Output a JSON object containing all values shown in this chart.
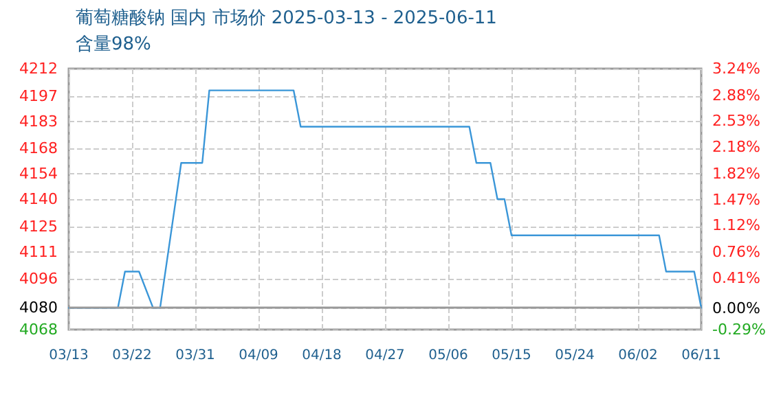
{
  "chart_data": {
    "type": "line",
    "title": "葡萄糖酸钠 国内 市场价 2025-03-13 - 2025-06-11",
    "subtitle": "含量98%",
    "x": [
      "2025-03-13",
      "2025-03-20",
      "2025-03-21",
      "2025-03-23",
      "2025-03-25",
      "2025-03-26",
      "2025-03-29",
      "2025-04-01",
      "2025-04-02",
      "2025-04-14",
      "2025-04-15",
      "2025-05-09",
      "2025-05-10",
      "2025-05-12",
      "2025-05-13",
      "2025-05-14",
      "2025-05-15",
      "2025-06-05",
      "2025-06-06",
      "2025-06-10",
      "2025-06-11"
    ],
    "series": [
      {
        "color": "#3a96d8",
        "values": [
          4080,
          4080,
          4100,
          4100,
          4080,
          4080,
          4160,
          4160,
          4200,
          4200,
          4180,
          4180,
          4160,
          4160,
          4140,
          4140,
          4120,
          4120,
          4100,
          4100,
          4080
        ]
      }
    ],
    "xlim": [
      "2025-03-13",
      "2025-06-11"
    ],
    "xticks": [
      {
        "value": "2025-03-13",
        "label": "03/13"
      },
      {
        "value": "2025-03-22",
        "label": "03/22"
      },
      {
        "value": "2025-03-31",
        "label": "03/31"
      },
      {
        "value": "2025-04-09",
        "label": "04/09"
      },
      {
        "value": "2025-04-18",
        "label": "04/18"
      },
      {
        "value": "2025-04-27",
        "label": "04/27"
      },
      {
        "value": "2025-05-06",
        "label": "05/06"
      },
      {
        "value": "2025-05-15",
        "label": "05/15"
      },
      {
        "value": "2025-05-24",
        "label": "05/24"
      },
      {
        "value": "2025-06-02",
        "label": "06/02"
      },
      {
        "value": "2025-06-11",
        "label": "06/11"
      }
    ],
    "ylim": [
      4068,
      4212
    ],
    "yticks": [
      4068,
      4080,
      4096,
      4111,
      4125,
      4140,
      4154,
      4168,
      4183,
      4197,
      4212
    ],
    "y2lim": [
      -0.29,
      3.24
    ],
    "y2ticks": [
      {
        "value": -0.29,
        "label": "-0.29%"
      },
      {
        "value": 0,
        "label": "0.00%"
      },
      {
        "value": 0.41,
        "label": "0.41%"
      },
      {
        "value": 0.76,
        "label": "0.76%"
      },
      {
        "value": 1.12,
        "label": "1.12%"
      },
      {
        "value": 1.47,
        "label": "1.47%"
      },
      {
        "value": 1.82,
        "label": "1.82%"
      },
      {
        "value": 2.18,
        "label": "2.18%"
      },
      {
        "value": 2.53,
        "label": "2.53%"
      },
      {
        "value": 2.88,
        "label": "2.88%"
      },
      {
        "value": 3.24,
        "label": "3.24%"
      }
    ],
    "ref_lines": [
      {
        "axis": "y",
        "value": 4080,
        "color": "#999999"
      }
    ],
    "grid": true,
    "marker": "none",
    "line_style": "solid"
  }
}
